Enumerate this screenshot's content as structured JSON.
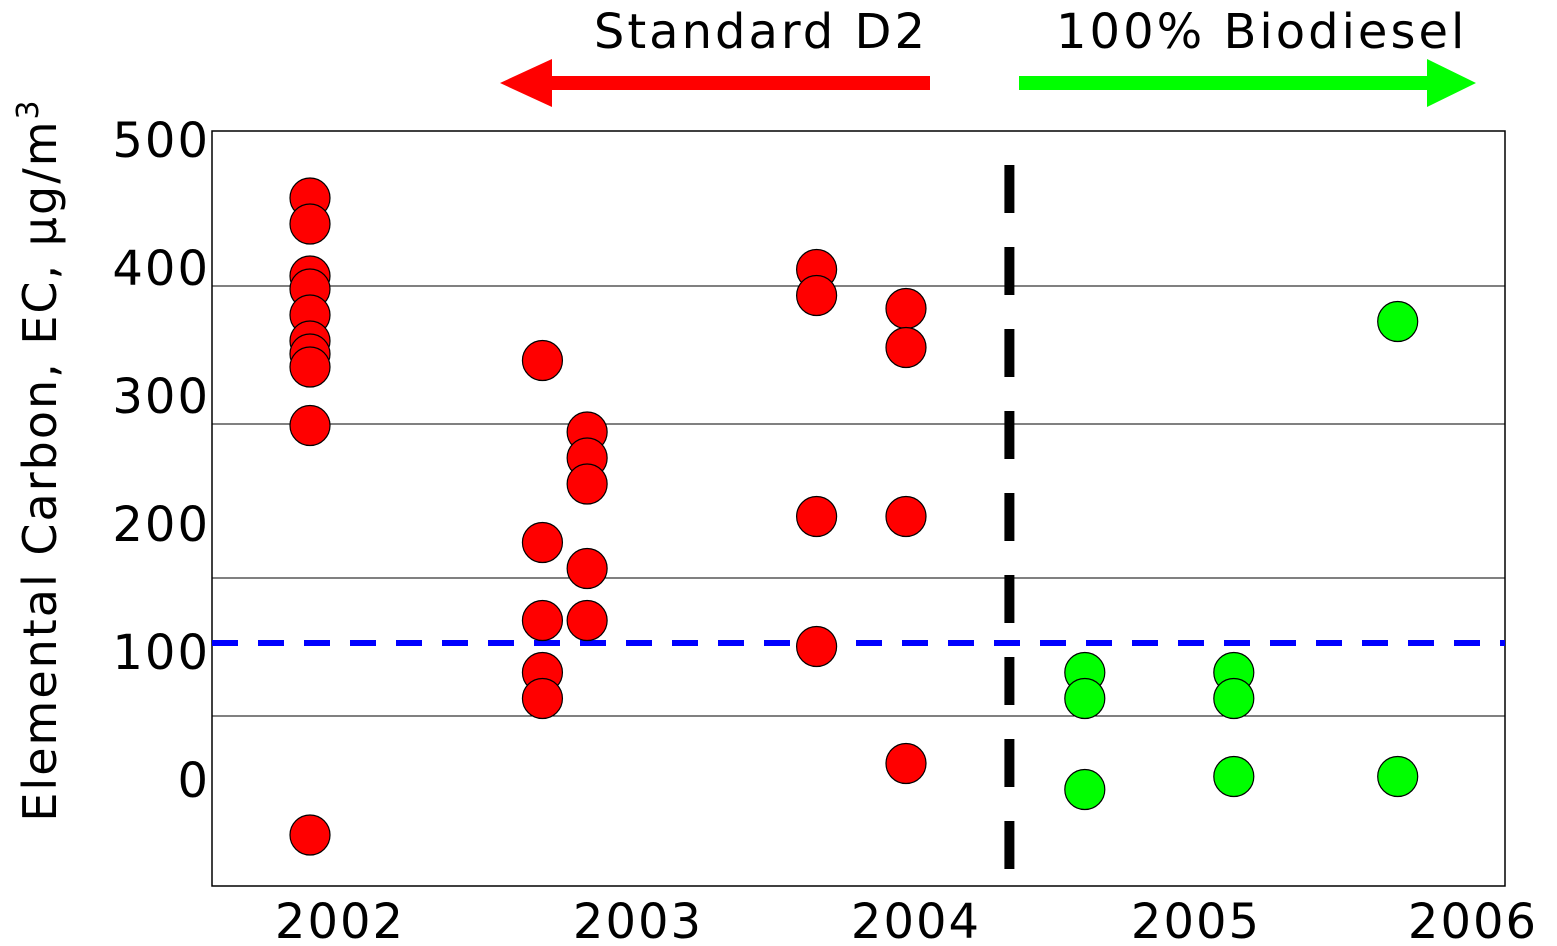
{
  "chart_data": {
    "type": "scatter",
    "title": "",
    "xlabel": "",
    "ylabel": "Elemental Carbon, EC, µg/m",
    "ylabel_superscript": "3",
    "x_ticks": [
      "2002",
      "2003",
      "2004",
      "2005",
      "2006"
    ],
    "y_ticks": [
      "500",
      "400",
      "300",
      "200",
      "100",
      "0"
    ],
    "grid": true,
    "annotations": {
      "left_label": "Standard D2",
      "right_label": "100% Biodiesel",
      "left_arrow_color": "#ff0000",
      "right_arrow_color": "#00ff00"
    },
    "reference_line": {
      "value": 100,
      "color": "#0000ff",
      "style": "dashed"
    },
    "divider": {
      "x": 2004.3,
      "color": "#000000",
      "style": "dashed"
    },
    "series": [
      {
        "name": "Standard D2",
        "color": "#ff0000",
        "points": [
          {
            "x": 2002.0,
            "y": 450
          },
          {
            "x": 2002.0,
            "y": 430
          },
          {
            "x": 2002.0,
            "y": 390
          },
          {
            "x": 2002.0,
            "y": 380
          },
          {
            "x": 2002.0,
            "y": 360
          },
          {
            "x": 2002.0,
            "y": 340
          },
          {
            "x": 2002.0,
            "y": 330
          },
          {
            "x": 2002.0,
            "y": 320
          },
          {
            "x": 2002.0,
            "y": 275
          },
          {
            "x": 2002.0,
            "y": -40
          },
          {
            "x": 2002.78,
            "y": 325
          },
          {
            "x": 2002.78,
            "y": 185
          },
          {
            "x": 2002.78,
            "y": 125
          },
          {
            "x": 2002.78,
            "y": 85
          },
          {
            "x": 2002.78,
            "y": 65
          },
          {
            "x": 2002.93,
            "y": 270
          },
          {
            "x": 2002.93,
            "y": 250
          },
          {
            "x": 2002.93,
            "y": 230
          },
          {
            "x": 2002.93,
            "y": 165
          },
          {
            "x": 2002.93,
            "y": 125
          },
          {
            "x": 2003.7,
            "y": 395
          },
          {
            "x": 2003.7,
            "y": 375
          },
          {
            "x": 2003.7,
            "y": 205
          },
          {
            "x": 2003.7,
            "y": 105
          },
          {
            "x": 2004.0,
            "y": 365
          },
          {
            "x": 2004.0,
            "y": 335
          },
          {
            "x": 2004.0,
            "y": 205
          },
          {
            "x": 2004.0,
            "y": 15
          }
        ]
      },
      {
        "name": "100% Biodiesel",
        "color": "#00ff00",
        "points": [
          {
            "x": 2004.6,
            "y": 85
          },
          {
            "x": 2004.6,
            "y": 65
          },
          {
            "x": 2004.6,
            "y": -5
          },
          {
            "x": 2005.1,
            "y": 85
          },
          {
            "x": 2005.1,
            "y": 65
          },
          {
            "x": 2005.1,
            "y": 5
          },
          {
            "x": 2005.65,
            "y": 355
          },
          {
            "x": 2005.65,
            "y": 5
          }
        ]
      }
    ]
  }
}
